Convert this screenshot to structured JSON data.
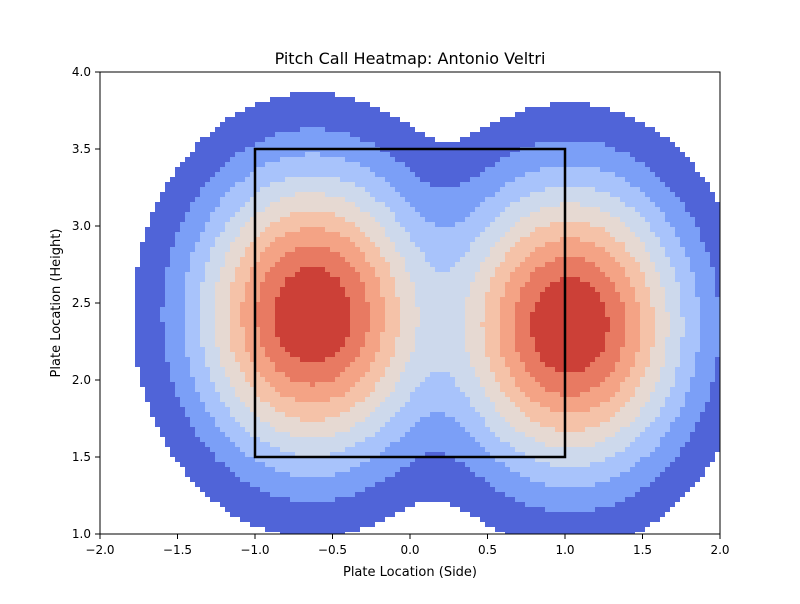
{
  "chart_data": {
    "type": "heatmap",
    "title": "Pitch Call Heatmap: Antonio Veltri",
    "xlabel": "Plate Location (Side)",
    "ylabel": "Plate Location (Height)",
    "xlim": [
      -2.0,
      2.0
    ],
    "ylim": [
      1.0,
      4.0
    ],
    "xticks": [
      "−2.0",
      "−1.5",
      "−1.0",
      "−0.5",
      "0.0",
      "0.5",
      "1.0",
      "1.5",
      "2.0"
    ],
    "yticks": [
      "1.0",
      "1.5",
      "2.0",
      "2.5",
      "3.0",
      "3.5",
      "4.0"
    ],
    "colormap": "coolwarm",
    "density_peaks": [
      {
        "x": -0.63,
        "y": 2.42,
        "sx": 0.4,
        "sy": 0.5,
        "weight": 1.0
      },
      {
        "x": 1.03,
        "y": 2.35,
        "sx": 0.4,
        "sy": 0.5,
        "weight": 1.0
      }
    ],
    "level_colors": [
      "#ffffff",
      "#5064d8",
      "#7b9ff7",
      "#a8c3fb",
      "#cdd9ec",
      "#e6d9d2",
      "#f5c2a8",
      "#f4a385",
      "#e87a62",
      "#cc4037"
    ],
    "strike_zone": {
      "x": [
        -1.0,
        1.0
      ],
      "y": [
        1.5,
        3.5
      ],
      "color": "#000000"
    }
  }
}
